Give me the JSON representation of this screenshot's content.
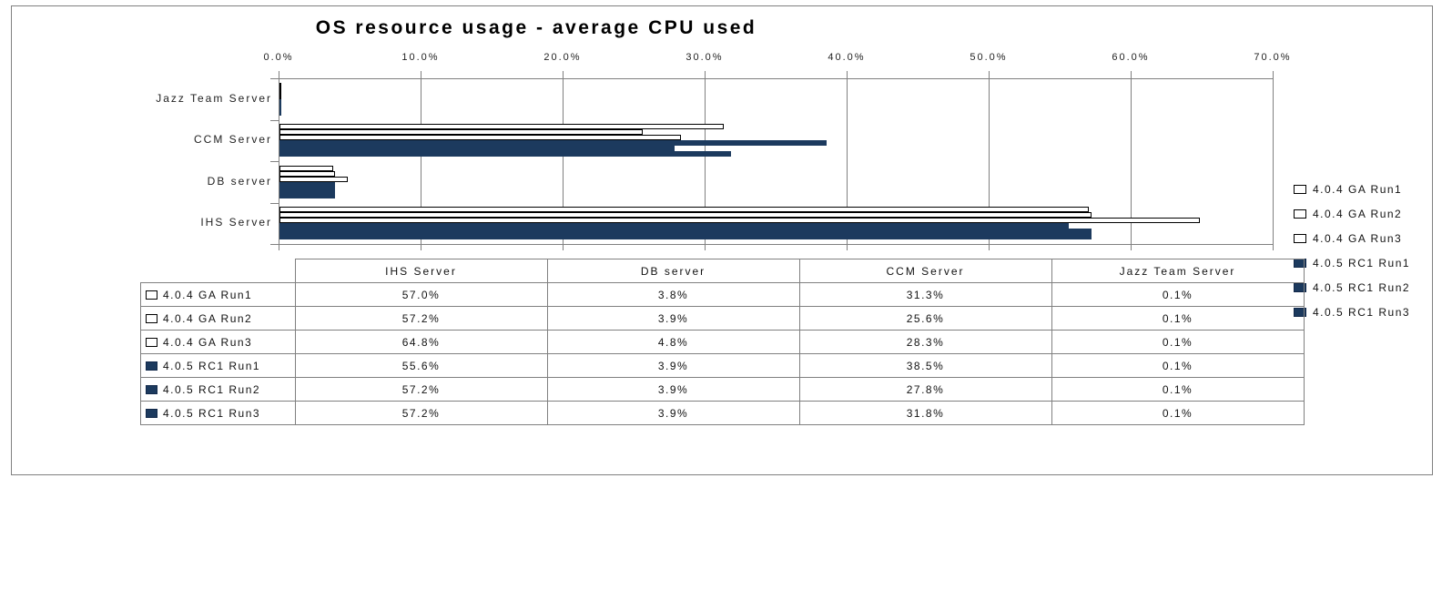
{
  "chart_title": "OS resource usage - average CPU used",
  "chart_data": {
    "type": "bar",
    "orientation": "horizontal",
    "title": "OS resource usage - average CPU used",
    "categories": [
      "IHS Server",
      "DB server",
      "CCM Server",
      "Jazz Team Server"
    ],
    "categories_display_top_to_bottom": [
      "Jazz Team Server",
      "CCM Server",
      "DB server",
      "IHS Server"
    ],
    "series": [
      {
        "name": "4.0.4 GA Run1",
        "marker": "white",
        "values": [
          57.0,
          3.8,
          31.3,
          0.1
        ]
      },
      {
        "name": "4.0.4 GA Run2",
        "marker": "white",
        "values": [
          57.2,
          3.9,
          25.6,
          0.1
        ]
      },
      {
        "name": "4.0.4 GA Run3",
        "marker": "white",
        "values": [
          64.8,
          4.8,
          28.3,
          0.1
        ]
      },
      {
        "name": "4.0.5 RC1 Run1",
        "marker": "navy",
        "values": [
          55.6,
          3.9,
          38.5,
          0.1
        ]
      },
      {
        "name": "4.0.5 RC1 Run2",
        "marker": "navy",
        "values": [
          57.2,
          3.9,
          27.8,
          0.1
        ]
      },
      {
        "name": "4.0.5 RC1 Run3",
        "marker": "navy",
        "values": [
          57.2,
          3.9,
          31.8,
          0.1
        ]
      }
    ],
    "xlim": [
      0,
      70
    ],
    "x_tick_labels": [
      "0.0%",
      "10.0%",
      "20.0%",
      "30.0%",
      "40.0%",
      "50.0%",
      "60.0%",
      "70.0%"
    ],
    "axis_labels_position": "top",
    "grid": true,
    "legend_position": "right"
  },
  "legend": {
    "items": [
      {
        "label": "4.0.4 GA Run1",
        "marker": "white"
      },
      {
        "label": "4.0.4 GA Run2",
        "marker": "white"
      },
      {
        "label": "4.0.4 GA Run3",
        "marker": "white"
      },
      {
        "label": "4.0.5 RC1 Run1",
        "marker": "navy"
      },
      {
        "label": "4.0.5 RC1 Run2",
        "marker": "navy"
      },
      {
        "label": "4.0.5 RC1 Run3",
        "marker": "navy"
      }
    ]
  },
  "table": {
    "columns": [
      "",
      "IHS Server",
      "DB server",
      "CCM Server",
      "Jazz Team Server"
    ],
    "rows": [
      {
        "label": "4.0.4 GA Run1",
        "marker": "white",
        "values": [
          "57.0%",
          "3.8%",
          "31.3%",
          "0.1%"
        ]
      },
      {
        "label": "4.0.4 GA Run2",
        "marker": "white",
        "values": [
          "57.2%",
          "3.9%",
          "25.6%",
          "0.1%"
        ]
      },
      {
        "label": "4.0.4 GA Run3",
        "marker": "white",
        "values": [
          "64.8%",
          "4.8%",
          "28.3%",
          "0.1%"
        ]
      },
      {
        "label": "4.0.5 RC1 Run1",
        "marker": "navy",
        "values": [
          "55.6%",
          "3.9%",
          "38.5%",
          "0.1%"
        ]
      },
      {
        "label": "4.0.5 RC1 Run2",
        "marker": "navy",
        "values": [
          "57.2%",
          "3.9%",
          "27.8%",
          "0.1%"
        ]
      },
      {
        "label": "4.0.5 RC1 Run3",
        "marker": "navy",
        "values": [
          "57.2%",
          "3.9%",
          "31.8%",
          "0.1%"
        ]
      }
    ]
  },
  "colors": {
    "navy_series": "#1C3A5E",
    "white_series_fill": "#FFFFFF",
    "white_series_border": "#000000",
    "gridline": "#808080",
    "frame_border": "#808080",
    "table_border": "#808080"
  }
}
